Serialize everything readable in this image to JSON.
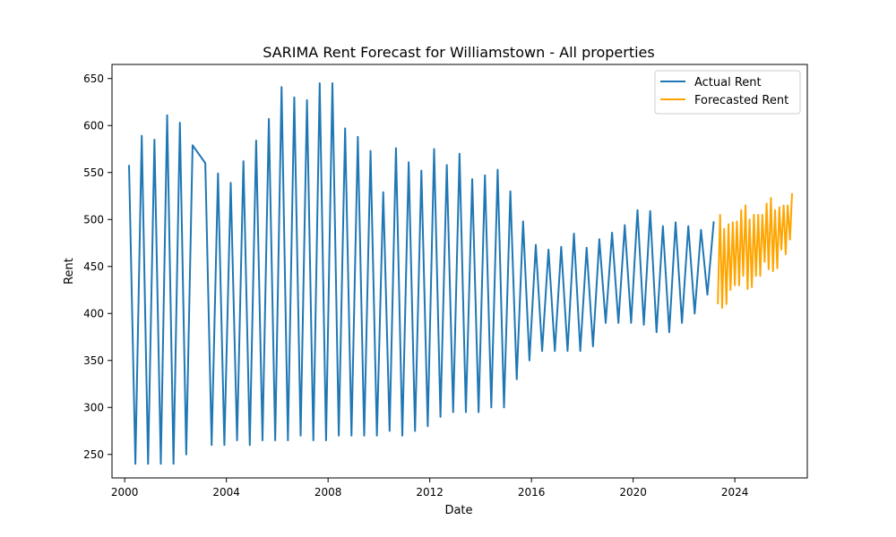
{
  "chart_data": {
    "type": "line",
    "title": "SARIMA Rent Forecast for Williamstown - All properties",
    "xlabel": "Date",
    "ylabel": "Rent",
    "xlim": [
      1999.5,
      2026.85
    ],
    "ylim": [
      225,
      665
    ],
    "x_ticks": [
      2000,
      2004,
      2008,
      2012,
      2016,
      2020,
      2024
    ],
    "y_ticks": [
      250,
      300,
      350,
      400,
      450,
      500,
      550,
      600,
      650
    ],
    "grid": false,
    "legend_position": "top-right",
    "series": [
      {
        "name": "Actual Rent",
        "color": "#1f77b4",
        "x": [
          2000.17,
          2000.42,
          2000.67,
          2000.92,
          2001.17,
          2001.42,
          2001.67,
          2001.92,
          2002.17,
          2002.42,
          2002.67,
          2003.17,
          2003.42,
          2003.67,
          2003.92,
          2004.17,
          2004.42,
          2004.67,
          2004.92,
          2005.17,
          2005.42,
          2005.67,
          2005.92,
          2006.17,
          2006.42,
          2006.67,
          2006.92,
          2007.17,
          2007.42,
          2007.67,
          2007.92,
          2008.17,
          2008.42,
          2008.67,
          2008.92,
          2009.17,
          2009.42,
          2009.67,
          2009.92,
          2010.17,
          2010.42,
          2010.67,
          2010.92,
          2011.17,
          2011.42,
          2011.67,
          2011.92,
          2012.17,
          2012.42,
          2012.67,
          2012.92,
          2013.17,
          2013.42,
          2013.67,
          2013.92,
          2014.17,
          2014.42,
          2014.67,
          2014.92,
          2015.17,
          2015.42,
          2015.67,
          2015.92,
          2016.17,
          2016.42,
          2016.67,
          2016.92,
          2017.17,
          2017.42,
          2017.67,
          2017.92,
          2018.17,
          2018.42,
          2018.67,
          2018.92,
          2019.17,
          2019.42,
          2019.67,
          2019.92,
          2020.17,
          2020.42,
          2020.67,
          2020.92,
          2021.17,
          2021.42,
          2021.67,
          2021.92,
          2022.17,
          2022.42,
          2022.67,
          2022.92,
          2023.17
        ],
        "y": [
          558,
          240,
          589,
          240,
          585,
          240,
          611,
          240,
          603,
          250,
          579,
          560,
          260,
          549,
          260,
          539,
          265,
          562,
          260,
          584,
          265,
          607,
          265,
          641,
          265,
          630,
          270,
          627,
          265,
          645,
          265,
          645,
          270,
          597,
          270,
          588,
          270,
          573,
          270,
          529,
          275,
          576,
          270,
          561,
          275,
          552,
          280,
          575,
          290,
          558,
          295,
          570,
          295,
          543,
          295,
          547,
          300,
          553,
          300,
          530,
          330,
          498,
          350,
          473,
          360,
          468,
          360,
          471,
          360,
          485,
          360,
          470,
          365,
          479,
          390,
          486,
          390,
          494,
          390,
          510,
          388,
          509,
          380,
          493,
          380,
          497,
          390,
          493,
          400,
          489,
          420,
          498
        ]
      },
      {
        "name": "Forecasted Rent",
        "color": "#ffa500",
        "x": [
          2023.33,
          2023.42,
          2023.5,
          2023.58,
          2023.67,
          2023.75,
          2023.83,
          2023.92,
          2024.0,
          2024.08,
          2024.17,
          2024.25,
          2024.33,
          2024.42,
          2024.5,
          2024.58,
          2024.67,
          2024.75,
          2024.83,
          2024.92,
          2025.0,
          2025.08,
          2025.17,
          2025.25,
          2025.33,
          2025.42,
          2025.5,
          2025.58,
          2025.67,
          2025.75,
          2025.83,
          2025.92,
          2026.0,
          2026.08,
          2026.17
        ],
        "y": [
          410,
          505,
          406,
          490,
          410,
          495,
          425,
          497,
          430,
          498,
          430,
          510,
          440,
          515,
          426,
          500,
          428,
          505,
          440,
          505,
          440,
          505,
          455,
          517,
          447,
          523,
          445,
          510,
          448,
          513,
          468,
          515,
          463,
          515,
          478
        ]
      },
      {
        "name": "",
        "color": "#ffa500",
        "x": [
          2026.17,
          2026.25
        ],
        "y": [
          478,
          528
        ]
      }
    ]
  }
}
